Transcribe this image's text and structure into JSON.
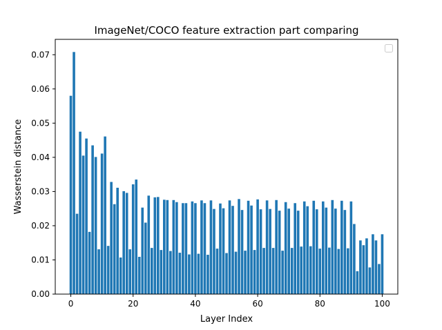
{
  "chart_data": {
    "type": "bar",
    "title": "ImageNet/COCO feature extraction part comparing",
    "xlabel": "Layer Index",
    "ylabel": "Wasserstein distance",
    "xlim": [
      -5,
      105
    ],
    "ylim": [
      0,
      0.0745
    ],
    "xticks": [
      0,
      20,
      40,
      60,
      80,
      100
    ],
    "xtick_labels": [
      "0",
      "20",
      "40",
      "60",
      "80",
      "100"
    ],
    "yticks": [
      0,
      0.01,
      0.02,
      0.03,
      0.04,
      0.05,
      0.06,
      0.07
    ],
    "ytick_labels": [
      "0.00",
      "0.01",
      "0.02",
      "0.03",
      "0.04",
      "0.05",
      "0.06",
      "0.07"
    ],
    "bar_color": "#1f77b4",
    "legend": "top-right, empty",
    "grid": false,
    "x": [
      0,
      1,
      2,
      3,
      4,
      5,
      6,
      7,
      8,
      9,
      10,
      11,
      12,
      13,
      14,
      15,
      16,
      17,
      18,
      19,
      20,
      21,
      22,
      23,
      24,
      25,
      26,
      27,
      28,
      29,
      30,
      31,
      32,
      33,
      34,
      35,
      36,
      37,
      38,
      39,
      40,
      41,
      42,
      43,
      44,
      45,
      46,
      47,
      48,
      49,
      50,
      51,
      52,
      53,
      54,
      55,
      56,
      57,
      58,
      59,
      60,
      61,
      62,
      63,
      64,
      65,
      66,
      67,
      68,
      69,
      70,
      71,
      72,
      73,
      74,
      75,
      76,
      77,
      78,
      79,
      80,
      81,
      82,
      83,
      84,
      85,
      86,
      87,
      88,
      89,
      90,
      91,
      92,
      93,
      94,
      95,
      96,
      97,
      98,
      99,
      100
    ],
    "values": [
      0.058,
      0.0708,
      0.0235,
      0.0475,
      0.0405,
      0.0455,
      0.0182,
      0.0435,
      0.0401,
      0.0131,
      0.0411,
      0.0461,
      0.0141,
      0.0328,
      0.0263,
      0.0311,
      0.0107,
      0.0301,
      0.0296,
      0.0131,
      0.0321,
      0.0335,
      0.0109,
      0.0253,
      0.0209,
      0.0288,
      0.0135,
      0.0283,
      0.0284,
      0.0129,
      0.0276,
      0.0275,
      0.0126,
      0.0275,
      0.0269,
      0.0121,
      0.0266,
      0.0266,
      0.0116,
      0.0271,
      0.0266,
      0.0118,
      0.0274,
      0.0266,
      0.0115,
      0.0274,
      0.0249,
      0.0133,
      0.0265,
      0.0251,
      0.012,
      0.0274,
      0.0258,
      0.0124,
      0.0278,
      0.0246,
      0.0127,
      0.0273,
      0.0259,
      0.0129,
      0.0277,
      0.0248,
      0.0135,
      0.0274,
      0.0249,
      0.0135,
      0.0275,
      0.0244,
      0.0127,
      0.0269,
      0.025,
      0.0135,
      0.0266,
      0.0244,
      0.0139,
      0.0271,
      0.0257,
      0.014,
      0.0273,
      0.0248,
      0.0133,
      0.0271,
      0.0253,
      0.0136,
      0.0275,
      0.025,
      0.0132,
      0.0273,
      0.0246,
      0.0134,
      0.0271,
      0.0205,
      0.0067,
      0.0157,
      0.0143,
      0.0163,
      0.0078,
      0.0175,
      0.0157,
      0.0088,
      0.0175
    ]
  }
}
